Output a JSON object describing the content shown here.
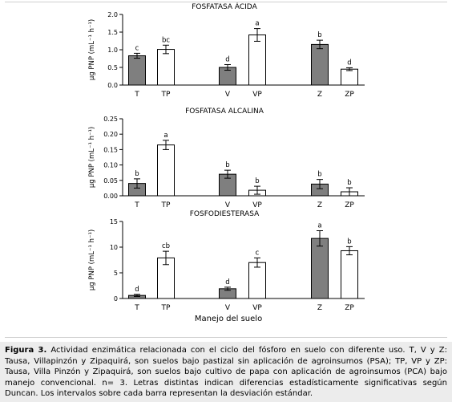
{
  "figure": {
    "shared_xlabel": "Manejo del suelo",
    "caption_label": "Figura 3.",
    "caption_text": " Actividad enzimática relacionada con el ciclo del fósforo en suelo con diferente uso. T, V  y Z: Tausa, Villapinzón y Zipaquirá, son suelos bajo pastizal sin aplicación de agroinsumos (PSA); TP, VP y  ZP: Tausa, Villa Pinzón y Zipaquirá, son suelos bajo cultivo de papa con aplicación de agroinsumos (PCA) bajo manejo convencional. n= 3. Letras distintas indican diferencias estadísticamente significativas según Duncan. Los intervalos sobre cada barra representan la desviación estándar."
  },
  "colors": {
    "filled": "#7f7f7f",
    "open": "#ffffff",
    "outline": "#000000"
  },
  "chart_data": [
    {
      "type": "bar",
      "title": "FOSFATASA ÁCIDA",
      "ylabel": "µg PNP (mL⁻¹ h⁻¹)",
      "ylim": [
        0,
        2.0
      ],
      "yticks": [
        "0.0",
        "0.5",
        "1.0",
        "1.5",
        "2.0"
      ],
      "categories": [
        "T",
        "TP",
        "V",
        "VP",
        "Z",
        "ZP"
      ],
      "values": [
        0.83,
        1.01,
        0.5,
        1.42,
        1.15,
        0.45
      ],
      "errors": [
        0.07,
        0.12,
        0.08,
        0.18,
        0.12,
        0.04
      ],
      "letters": [
        "c",
        "bc",
        "d",
        "a",
        "b",
        "d"
      ],
      "fill": [
        "filled",
        "open",
        "filled",
        "open",
        "filled",
        "open"
      ]
    },
    {
      "type": "bar",
      "title": "FOSFATASA ALCALINA",
      "ylabel": "µg PNP (mL⁻¹ h⁻¹)",
      "ylim": [
        0,
        0.25
      ],
      "yticks": [
        "0.00",
        "0.05",
        "0.10",
        "0.15",
        "0.20",
        "0.25"
      ],
      "categories": [
        "T",
        "TP",
        "V",
        "VP",
        "Z",
        "ZP"
      ],
      "values": [
        0.04,
        0.165,
        0.07,
        0.018,
        0.038,
        0.013
      ],
      "errors": [
        0.015,
        0.015,
        0.013,
        0.013,
        0.015,
        0.013
      ],
      "letters": [
        "b",
        "a",
        "b",
        "b",
        "b",
        "b"
      ],
      "fill": [
        "filled",
        "open",
        "filled",
        "open",
        "filled",
        "open"
      ]
    },
    {
      "type": "bar",
      "title": "FOSFODIESTERASA",
      "ylabel": "µg PNP (mL⁻¹ h⁻¹)",
      "ylim": [
        0,
        15
      ],
      "yticks": [
        "0",
        "5",
        "10",
        "15"
      ],
      "categories": [
        "T",
        "TP",
        "V",
        "VP",
        "Z",
        "ZP"
      ],
      "values": [
        0.6,
        7.9,
        1.9,
        7.0,
        11.7,
        9.3
      ],
      "errors": [
        0.2,
        1.3,
        0.3,
        0.9,
        1.5,
        0.8
      ],
      "letters": [
        "d",
        "cb",
        "d",
        "c",
        "a",
        "b"
      ],
      "fill": [
        "filled",
        "open",
        "filled",
        "open",
        "filled",
        "open"
      ]
    }
  ]
}
